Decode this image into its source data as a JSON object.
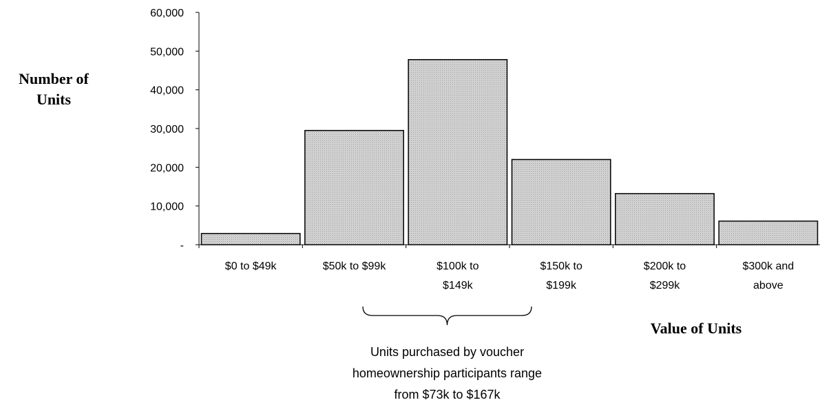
{
  "chart_data": {
    "type": "bar",
    "title": "",
    "xlabel": "Value of Units",
    "ylabel_lines": [
      "Number of",
      "Units"
    ],
    "categories": [
      [
        "$0 to $49k"
      ],
      [
        "$50k to $99k"
      ],
      [
        "$100k to",
        "$149k"
      ],
      [
        "$150k to",
        "$199k"
      ],
      [
        "$200k to",
        "$299k"
      ],
      [
        "$300k and",
        "above"
      ]
    ],
    "values": [
      2900,
      29500,
      47800,
      22000,
      13200,
      6100
    ],
    "ylim": [
      0,
      60000
    ],
    "yticks": [
      0,
      10000,
      20000,
      30000,
      40000,
      50000,
      60000
    ],
    "ytick_labels": [
      "-",
      "10,000",
      "20,000",
      "30,000",
      "40,000",
      "50,000",
      "60,000"
    ],
    "bar_fill": "#d3d3d3",
    "bar_pattern": "stippled gray",
    "grid": false,
    "annotation": {
      "lines": [
        "Units purchased by voucher",
        "homeownership participants range",
        "from $73k to $167k"
      ],
      "brace_span": [
        "$50k to $99k",
        "$150k to $199k"
      ]
    }
  }
}
